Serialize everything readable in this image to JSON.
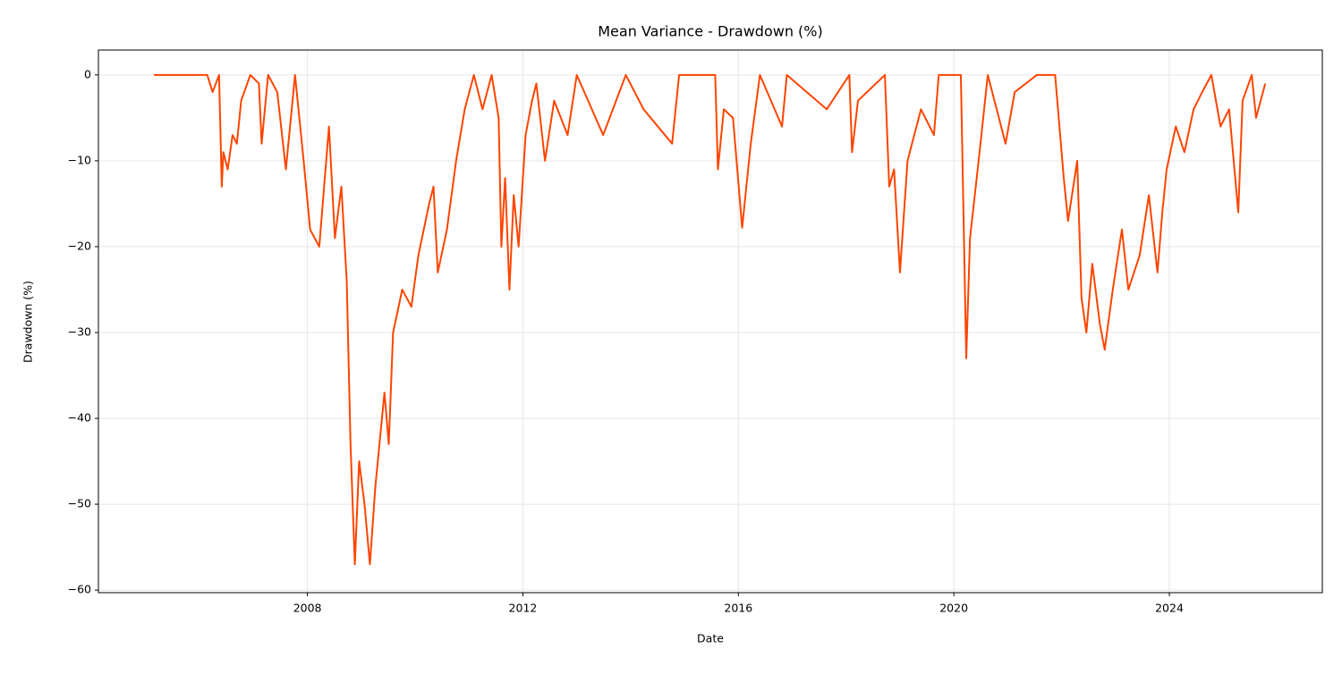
{
  "chart_data": {
    "type": "line",
    "title": "Mean Variance - Drawdown (%)",
    "x_label": "Date",
    "y_label": "Drawdown (%)",
    "xlim": [
      2004.12,
      2026.84
    ],
    "ylim": [
      -60.3,
      2.9
    ],
    "xticks": [
      2008,
      2012,
      2016,
      2020,
      2024
    ],
    "yticks": [
      {
        "value": 0,
        "label": "0"
      },
      {
        "value": -10,
        "label": "−10"
      },
      {
        "value": -20,
        "label": "−20"
      },
      {
        "value": -30,
        "label": "−30"
      },
      {
        "value": -40,
        "label": "−40"
      },
      {
        "value": -50,
        "label": "−50"
      },
      {
        "value": -60,
        "label": "−60"
      }
    ],
    "grid": true,
    "x": [
      2005.15,
      2006.14,
      2006.24,
      2006.36,
      2006.41,
      2006.44,
      2006.52,
      2006.61,
      2006.69,
      2006.77,
      2006.94,
      2007.1,
      2007.15,
      2007.27,
      2007.44,
      2007.6,
      2007.77,
      2007.93,
      2008.05,
      2008.22,
      2008.4,
      2008.51,
      2008.63,
      2008.73,
      2008.8,
      2008.88,
      2008.96,
      2009.06,
      2009.16,
      2009.26,
      2009.43,
      2009.51,
      2009.59,
      2009.76,
      2009.93,
      2010.06,
      2010.26,
      2010.34,
      2010.42,
      2010.59,
      2010.76,
      2010.92,
      2011.09,
      2011.25,
      2011.42,
      2011.55,
      2011.6,
      2011.67,
      2011.75,
      2011.83,
      2011.92,
      2012.05,
      2012.17,
      2012.25,
      2012.41,
      2012.58,
      2012.83,
      2013.0,
      2013.49,
      2013.91,
      2014.24,
      2014.77,
      2014.9,
      2015.57,
      2015.62,
      2015.73,
      2015.9,
      2016.07,
      2016.23,
      2016.4,
      2016.81,
      2016.9,
      2017.64,
      2018.06,
      2018.11,
      2018.22,
      2018.72,
      2018.8,
      2018.89,
      2019.0,
      2019.14,
      2019.39,
      2019.63,
      2019.72,
      2019.88,
      2020.13,
      2020.23,
      2020.3,
      2020.46,
      2020.63,
      2020.96,
      2021.13,
      2021.54,
      2021.88,
      2022.04,
      2022.12,
      2022.29,
      2022.37,
      2022.46,
      2022.57,
      2022.71,
      2022.8,
      2022.95,
      2023.12,
      2023.24,
      2023.45,
      2023.62,
      2023.78,
      2023.87,
      2023.95,
      2024.12,
      2024.28,
      2024.45,
      2024.61,
      2024.78,
      2024.95,
      2025.11,
      2025.28,
      2025.36,
      2025.53,
      2025.61,
      2025.78
    ],
    "series": [
      {
        "name": "Drawdown",
        "color": "#ff4500",
        "values": [
          0,
          0,
          -2,
          0,
          -13,
          -9,
          -11,
          -7,
          -8,
          -3,
          0,
          -1,
          -8,
          0,
          -2,
          -11,
          0,
          -10,
          -18,
          -20,
          -6,
          -19,
          -13,
          -24,
          -43,
          -57,
          -45,
          -50,
          -57,
          -48,
          -37,
          -43,
          -30,
          -25,
          -27,
          -21,
          -15,
          -13,
          -23,
          -18,
          -10,
          -4,
          0,
          -4,
          0,
          -5,
          -20,
          -12,
          -25,
          -14,
          -20,
          -7,
          -3,
          -1,
          -10,
          -3,
          -7,
          0,
          -7,
          0,
          -4,
          -8,
          0,
          0,
          -11,
          -4,
          -5,
          -17.8,
          -8,
          0,
          -6,
          0,
          -4,
          0,
          -9,
          -3,
          0,
          -13,
          -11,
          -23,
          -10,
          -4,
          -7,
          0,
          0,
          0,
          -33,
          -19,
          -10,
          0,
          -8,
          -2,
          0,
          0,
          -12,
          -17,
          -10,
          -26,
          -30,
          -22,
          -29,
          -32,
          -25,
          -18,
          -25,
          -21,
          -14,
          -23,
          -16,
          -11,
          -6,
          -9,
          -4,
          -2,
          0,
          -6,
          -4,
          -16,
          -3,
          0,
          -5,
          -1
        ]
      }
    ]
  }
}
